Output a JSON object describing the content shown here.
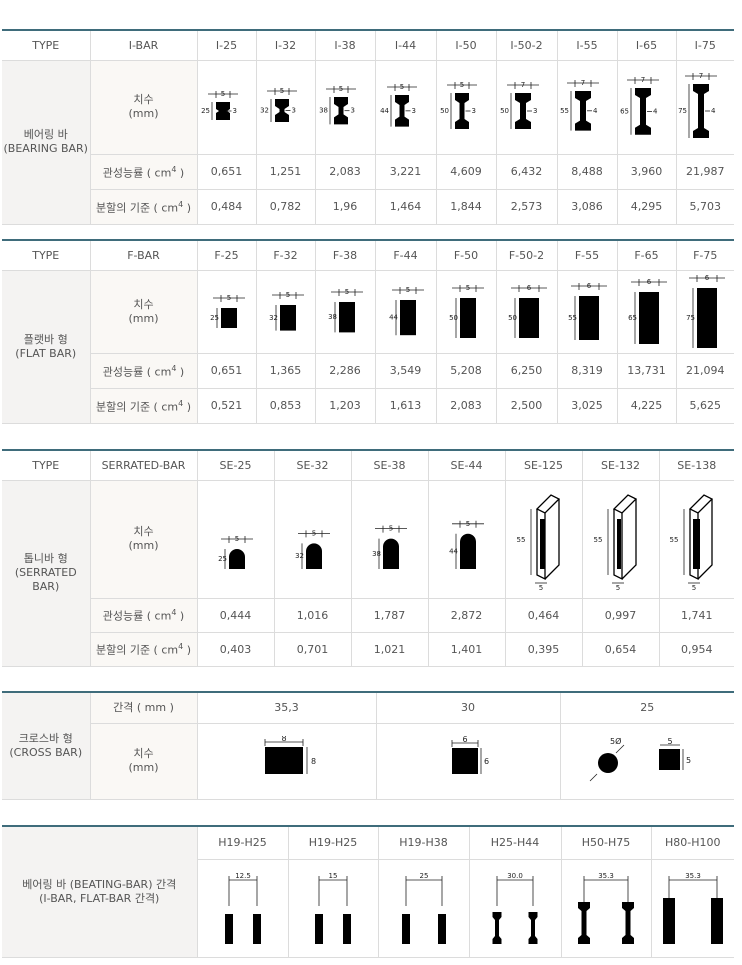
{
  "type_label": "TYPE",
  "row_dim": "치수",
  "row_mm": "(mm)",
  "row_inertia": "관성능률 ( cm",
  "row_section": "분할의 기준 ( cm",
  "exp": "4",
  "ibar": {
    "type": "I-BAR",
    "cat_ko": "베어링 바",
    "cat_en": "(BEARING BAR)",
    "models": [
      "I-25",
      "I-32",
      "I-38",
      "I-44",
      "I-50",
      "I-50-2",
      "I-55",
      "I-65",
      "I-75"
    ],
    "widths": [
      "5",
      "5",
      "5",
      "5",
      "5",
      "7",
      "7",
      "7",
      "7"
    ],
    "heights": [
      "25",
      "32",
      "38",
      "44",
      "50",
      "50",
      "55",
      "65",
      "75"
    ],
    "webs": [
      "3",
      "3",
      "3",
      "3",
      "3",
      "3",
      "4",
      "4",
      "4"
    ],
    "inertia": [
      "0,651",
      "1,251",
      "2,083",
      "3,221",
      "4,609",
      "6,432",
      "8,488",
      "3,960",
      "21,987"
    ],
    "section": [
      "0,484",
      "0,782",
      "1,96",
      "1,464",
      "1,844",
      "2,573",
      "3,086",
      "4,295",
      "5,703"
    ]
  },
  "fbar": {
    "type": "F-BAR",
    "cat_ko": "플랫바 형",
    "cat_en": "(FLAT BAR)",
    "models": [
      "F-25",
      "F-32",
      "F-38",
      "F-44",
      "F-50",
      "F-50-2",
      "F-55",
      "F-65",
      "F-75"
    ],
    "widths": [
      "5",
      "5",
      "5",
      "5",
      "5",
      "6",
      "6",
      "6",
      "6"
    ],
    "heights": [
      "25",
      "32",
      "38",
      "44",
      "50",
      "50",
      "55",
      "65",
      "75"
    ],
    "inertia": [
      "0,651",
      "1,365",
      "2,286",
      "3,549",
      "5,208",
      "6,250",
      "8,319",
      "13,731",
      "21,094"
    ],
    "section": [
      "0,521",
      "0,853",
      "1,203",
      "1,613",
      "2,083",
      "2,500",
      "3,025",
      "4,225",
      "5,625"
    ]
  },
  "sbar": {
    "type": "SERRATED-BAR",
    "cat_ko": "톱니바 형",
    "cat_en": "(SERRATED BAR)",
    "models": [
      "SE-25",
      "SE-32",
      "SE-38",
      "SE-44",
      "SE-125",
      "SE-132",
      "SE-138"
    ],
    "widths": [
      "5",
      "5",
      "5",
      "5",
      "5",
      "5",
      "5"
    ],
    "heights": [
      "25",
      "32",
      "38",
      "44",
      "55",
      "55",
      "55"
    ],
    "inertia": [
      "0,444",
      "1,016",
      "1,787",
      "2,872",
      "0,464",
      "0,997",
      "1,741"
    ],
    "section": [
      "0,403",
      "0,701",
      "1,021",
      "1,401",
      "0,395",
      "0,654",
      "0,954"
    ]
  },
  "cross": {
    "cat_ko": "크로스바 형",
    "cat_en": "(CROSS BAR)",
    "spacing_label": "간격 ( mm )",
    "spacings": [
      "35,3",
      "30",
      "25"
    ],
    "dims": [
      {
        "w": "8",
        "h": "8"
      },
      {
        "w": "6",
        "h": "6"
      },
      {
        "round": "5Ø",
        "w": "5",
        "h": "5"
      }
    ]
  },
  "spacing": {
    "cat_ko": "베어링 바 (BEATING-BAR) 간격",
    "cat_en": "(I-BAR, FLAT-BAR 간격)",
    "ranges": [
      "H19-H25",
      "H19-H25",
      "H19-H38",
      "H25-H44",
      "H50-H75",
      "H80-H100"
    ],
    "gaps": [
      "12.5",
      "15",
      "25",
      "30.0",
      "35.3",
      "35.3"
    ]
  }
}
